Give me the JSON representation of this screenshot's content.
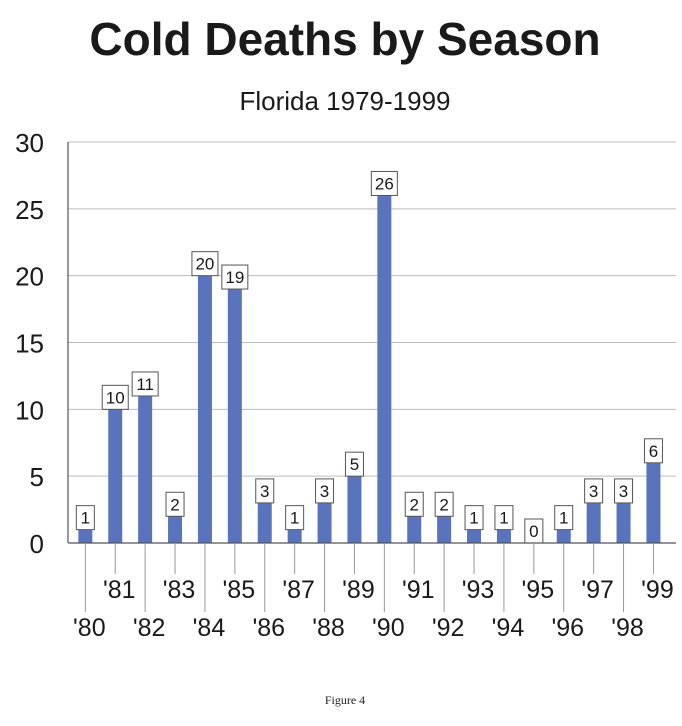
{
  "chart_data": {
    "type": "bar",
    "title": "Cold Deaths by Season",
    "subtitle": "Florida  1979-1999",
    "xlabel": "",
    "ylabel": "",
    "ylim": [
      0,
      30
    ],
    "yticks": [
      "0",
      "5",
      "10",
      "15",
      "20",
      "25",
      "30"
    ],
    "grid": true,
    "categories": [
      "'80",
      "'81",
      "'82",
      "'83",
      "'84",
      "'85",
      "'86",
      "'87",
      "'88",
      "'89",
      "'90",
      "'91",
      "'92",
      "'93",
      "'94",
      "'95",
      "'96",
      "'97",
      "'98",
      "'99"
    ],
    "values": [
      1,
      10,
      11,
      2,
      20,
      19,
      3,
      1,
      3,
      5,
      26,
      2,
      2,
      1,
      1,
      0,
      1,
      3,
      3,
      6
    ],
    "bar_color": "#5a73bd"
  },
  "caption": "Figure 4"
}
